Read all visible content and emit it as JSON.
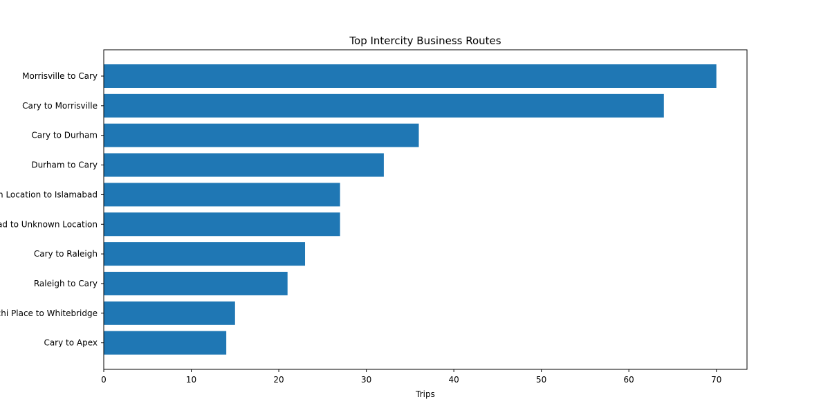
{
  "chart_data": {
    "type": "bar",
    "orientation": "horizontal",
    "title": "Top Intercity Business Routes",
    "xlabel": "Trips",
    "ylabel": "",
    "categories": [
      "Morrisville to Cary",
      "Cary to Morrisville",
      "Cary to Durham",
      "Durham to Cary",
      "Unknown Location to Islamabad",
      "Islamabad to Unknown Location",
      "Cary to Raleigh",
      "Raleigh to Cary",
      "Kar?chi Place to Whitebridge",
      "Cary to Apex"
    ],
    "values": [
      70,
      64,
      36,
      32,
      27,
      27,
      23,
      21,
      15,
      14
    ],
    "xlim": [
      0,
      73.5
    ],
    "xticks": [
      0,
      10,
      20,
      30,
      40,
      50,
      60,
      70
    ],
    "bar_color": "#1f77b4",
    "grid": false,
    "legend": "none"
  }
}
